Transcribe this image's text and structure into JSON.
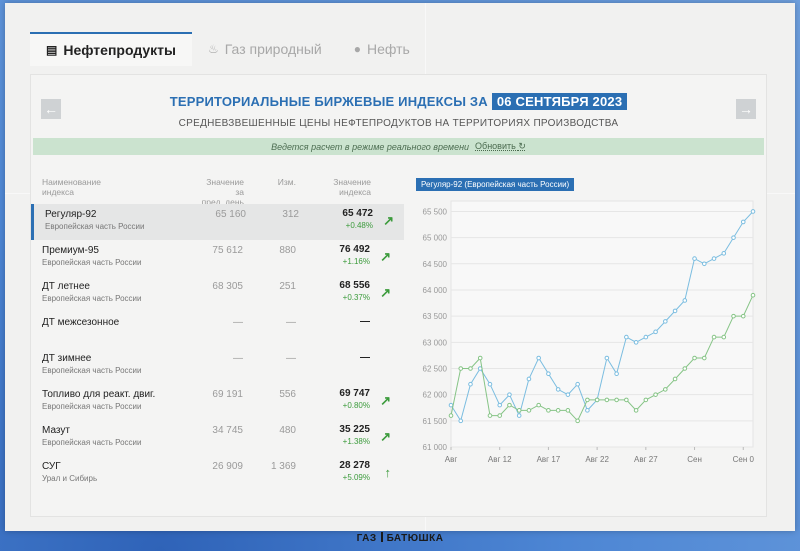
{
  "tabs": [
    {
      "label": "Нефтепродукты",
      "icon": "document-icon",
      "active": true
    },
    {
      "label": "Газ природный",
      "icon": "flame-icon",
      "active": false
    },
    {
      "label": "Нефть",
      "icon": "drop-icon",
      "active": false
    }
  ],
  "nav": {
    "prev": "←",
    "next": "→"
  },
  "header": {
    "title": "ТЕРРИТОРИАЛЬНЫЕ БИРЖЕВЫЕ ИНДЕКСЫ ЗА",
    "date": "06 СЕНТЯБРЯ 2023",
    "subtitle": "СРЕДНЕВЗВЕШЕННЫЕ ЦЕНЫ НЕФТЕПРОДУКТОВ НА ТЕРРИТОРИЯХ ПРОИЗВОДСТВА"
  },
  "notice": {
    "text": "Ведется расчет в режиме реального времени",
    "refresh": "Обновить"
  },
  "table": {
    "headers": {
      "name": [
        "Наименование",
        "индекса"
      ],
      "prev": [
        "Значение за",
        "пред. день"
      ],
      "change": "Изм.",
      "value": [
        "Значение",
        "индекса"
      ]
    },
    "rows": [
      {
        "name": "Регуляр-92",
        "region": "Европейская часть России",
        "prev": "65 160",
        "change": "312",
        "value": "65 472",
        "pct": "+0.48%",
        "arrow": "↗",
        "selected": true
      },
      {
        "name": "Премиум-95",
        "region": "Европейская часть России",
        "prev": "75 612",
        "change": "880",
        "value": "76 492",
        "pct": "+1.16%",
        "arrow": "↗",
        "selected": false
      },
      {
        "name": "ДТ летнее",
        "region": "Европейская часть России",
        "prev": "68 305",
        "change": "251",
        "value": "68 556",
        "pct": "+0.37%",
        "arrow": "↗",
        "selected": false
      },
      {
        "name": "ДТ межсезонное",
        "region": "",
        "prev": "—",
        "change": "—",
        "value": "—",
        "pct": "",
        "arrow": "",
        "selected": false
      },
      {
        "name": "ДТ зимнее",
        "region": "Европейская часть России",
        "prev": "—",
        "change": "—",
        "value": "—",
        "pct": "",
        "arrow": "",
        "selected": false
      },
      {
        "name": "Топливо для реакт. двиг.",
        "region": "Европейская часть России",
        "prev": "69 191",
        "change": "556",
        "value": "69 747",
        "pct": "+0.80%",
        "arrow": "↗",
        "selected": false
      },
      {
        "name": "Мазут",
        "region": "Европейская часть России",
        "prev": "34 745",
        "change": "480",
        "value": "35 225",
        "pct": "+1.38%",
        "arrow": "↗",
        "selected": false
      },
      {
        "name": "СУГ",
        "region": "Урал и Сибирь",
        "prev": "26 909",
        "change": "1 369",
        "value": "28 278",
        "pct": "+5.09%",
        "arrow": "↑",
        "selected": false
      }
    ]
  },
  "chart_title": "Регуляр-92 (Европейская часть России)",
  "chart_data": {
    "type": "line",
    "x_ticks": [
      "Авг",
      "Авг 12",
      "Авг 17",
      "Авг 22",
      "Авг 27",
      "Сен",
      "Сен 0"
    ],
    "x_tick_days": [
      7,
      12,
      17,
      22,
      27,
      32,
      37
    ],
    "x_range": [
      7,
      38
    ],
    "y_ticks": [
      "61 000",
      "61 500",
      "62 000",
      "62 500",
      "63 000",
      "63 500",
      "64 000",
      "64 500",
      "65 000",
      "65 500"
    ],
    "ylim": [
      61000,
      65700
    ],
    "series": [
      {
        "color": "#7bbde0",
        "x": [
          7,
          8,
          9,
          10,
          11,
          12,
          13,
          14,
          15,
          16,
          17,
          18,
          19,
          20,
          21,
          22,
          23,
          24,
          25,
          26,
          27,
          28,
          29,
          30,
          31,
          32,
          33,
          34,
          35,
          36,
          37,
          38
        ],
        "y": [
          61800,
          61500,
          62200,
          62500,
          62200,
          61800,
          62000,
          61600,
          62300,
          62700,
          62400,
          62100,
          62000,
          62200,
          61700,
          61900,
          62700,
          62400,
          63100,
          63000,
          63100,
          63200,
          63400,
          63600,
          63800,
          64600,
          64500,
          64600,
          64700,
          65000,
          65300,
          65500
        ]
      },
      {
        "color": "#86c486",
        "x": [
          7,
          8,
          9,
          10,
          11,
          12,
          13,
          14,
          15,
          16,
          17,
          18,
          19,
          20,
          21,
          22,
          23,
          24,
          25,
          26,
          27,
          28,
          29,
          30,
          31,
          32,
          33,
          34,
          35,
          36,
          37,
          38
        ],
        "y": [
          61600,
          62500,
          62500,
          62700,
          61600,
          61600,
          61800,
          61700,
          61700,
          61800,
          61700,
          61700,
          61700,
          61500,
          61900,
          61900,
          61900,
          61900,
          61900,
          61700,
          61900,
          62000,
          62100,
          62300,
          62500,
          62700,
          62700,
          63100,
          63100,
          63500,
          63500,
          63900
        ]
      }
    ]
  },
  "footer": {
    "left": "ГАЗ",
    "right": "БАТЮШКА"
  },
  "colors": {
    "accent": "#2b6fb3",
    "up": "#3c9b3c",
    "notice_bg": "#cbe3cf",
    "series_1": "#7bbde0",
    "series_2": "#86c486"
  }
}
